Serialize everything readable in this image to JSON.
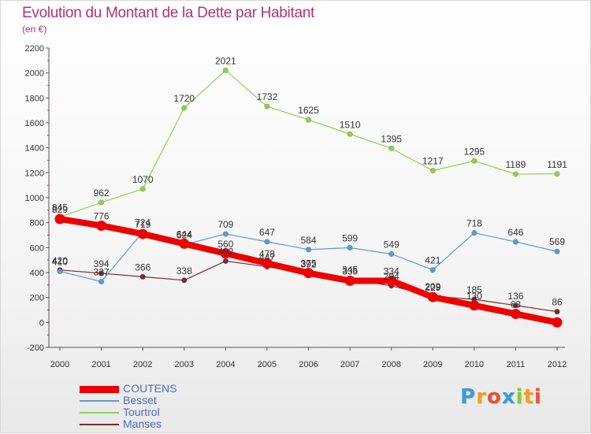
{
  "header": {
    "title": "Evolution du Montant de la Dette par Habitant",
    "subtitle": "(en €)"
  },
  "logo": {
    "text": "Proxiti",
    "letters": [
      {
        "ch": "P",
        "color": "#3a9bd9"
      },
      {
        "ch": "r",
        "color": "#f0a020"
      },
      {
        "ch": "o",
        "color": "#e8532f"
      },
      {
        "ch": "x",
        "color": "#3a9bd9"
      },
      {
        "ch": "i",
        "color": "#8cc63f"
      },
      {
        "ch": "t",
        "color": "#f0a020"
      },
      {
        "ch": "i",
        "color": "#e8532f"
      }
    ]
  },
  "chart_data": {
    "type": "line",
    "title": "Evolution du Montant de la Dette par Habitant",
    "subtitle": "(en €)",
    "x": [
      "2000",
      "2001",
      "2002",
      "2003",
      "2004",
      "2005",
      "2006",
      "2007",
      "2008",
      "2009",
      "2010",
      "2011",
      "2012"
    ],
    "ylim": [
      -200,
      2200
    ],
    "yticks": [
      -200,
      0,
      200,
      400,
      600,
      800,
      1000,
      1200,
      1400,
      1600,
      1800,
      2000,
      2200
    ],
    "grid": false,
    "legend_position": "bottom-left",
    "series": [
      {
        "name": "COUTENS",
        "color": "#ee0000",
        "values": [
          829,
          776,
          709,
          631,
          553,
          474,
          396,
          334,
          334,
          203,
          136,
          68,
          0
        ],
        "labels": [
          "829",
          "776",
          "",
          "",
          "",
          "",
          "",
          "",
          "334",
          "",
          "",
          "",
          ""
        ]
      },
      {
        "name": "Besset",
        "color": "#5b9bd5",
        "values": [
          410,
          327,
          724,
          624,
          709,
          647,
          584,
          599,
          549,
          421,
          718,
          646,
          569
        ],
        "labels": [
          "410",
          "327",
          "724",
          "624",
          "709",
          "647",
          "584",
          "599",
          "549",
          "421",
          "718",
          "646",
          "569"
        ]
      },
      {
        "name": "Tourtrol",
        "color": "#8fd14f",
        "values": [
          845,
          962,
          1070,
          1720,
          2021,
          1732,
          1625,
          1510,
          1395,
          1217,
          1295,
          1189,
          1191
        ],
        "labels": [
          "845",
          "962",
          "1070",
          "1720",
          "2021",
          "1732",
          "1625",
          "1510",
          "1395",
          "1217",
          "1295",
          "1189",
          "1191"
        ]
      },
      {
        "name": "Manses",
        "color": "#7b2c2c",
        "values": [
          420,
          394,
          366,
          338,
          492,
          447,
          392,
          345,
          294,
          209,
          185,
          136,
          86
        ],
        "labels": [
          "420",
          "394",
          "366",
          "338",
          "492",
          "447",
          "392",
          "345",
          "294",
          "209",
          "185",
          "136",
          "86"
        ]
      }
    ],
    "extra_labels": [
      {
        "x": "2002",
        "text": "719"
      },
      {
        "x": "2003",
        "text": "644"
      },
      {
        "x": "2004",
        "text": "560"
      },
      {
        "x": "2005",
        "text": "478"
      },
      {
        "x": "2006",
        "text": "375"
      },
      {
        "x": "2007",
        "text": "335"
      },
      {
        "x": "2009",
        "text": "229"
      },
      {
        "x": "2010",
        "text": "130"
      },
      {
        "x": "2011",
        "text": "63"
      }
    ]
  }
}
